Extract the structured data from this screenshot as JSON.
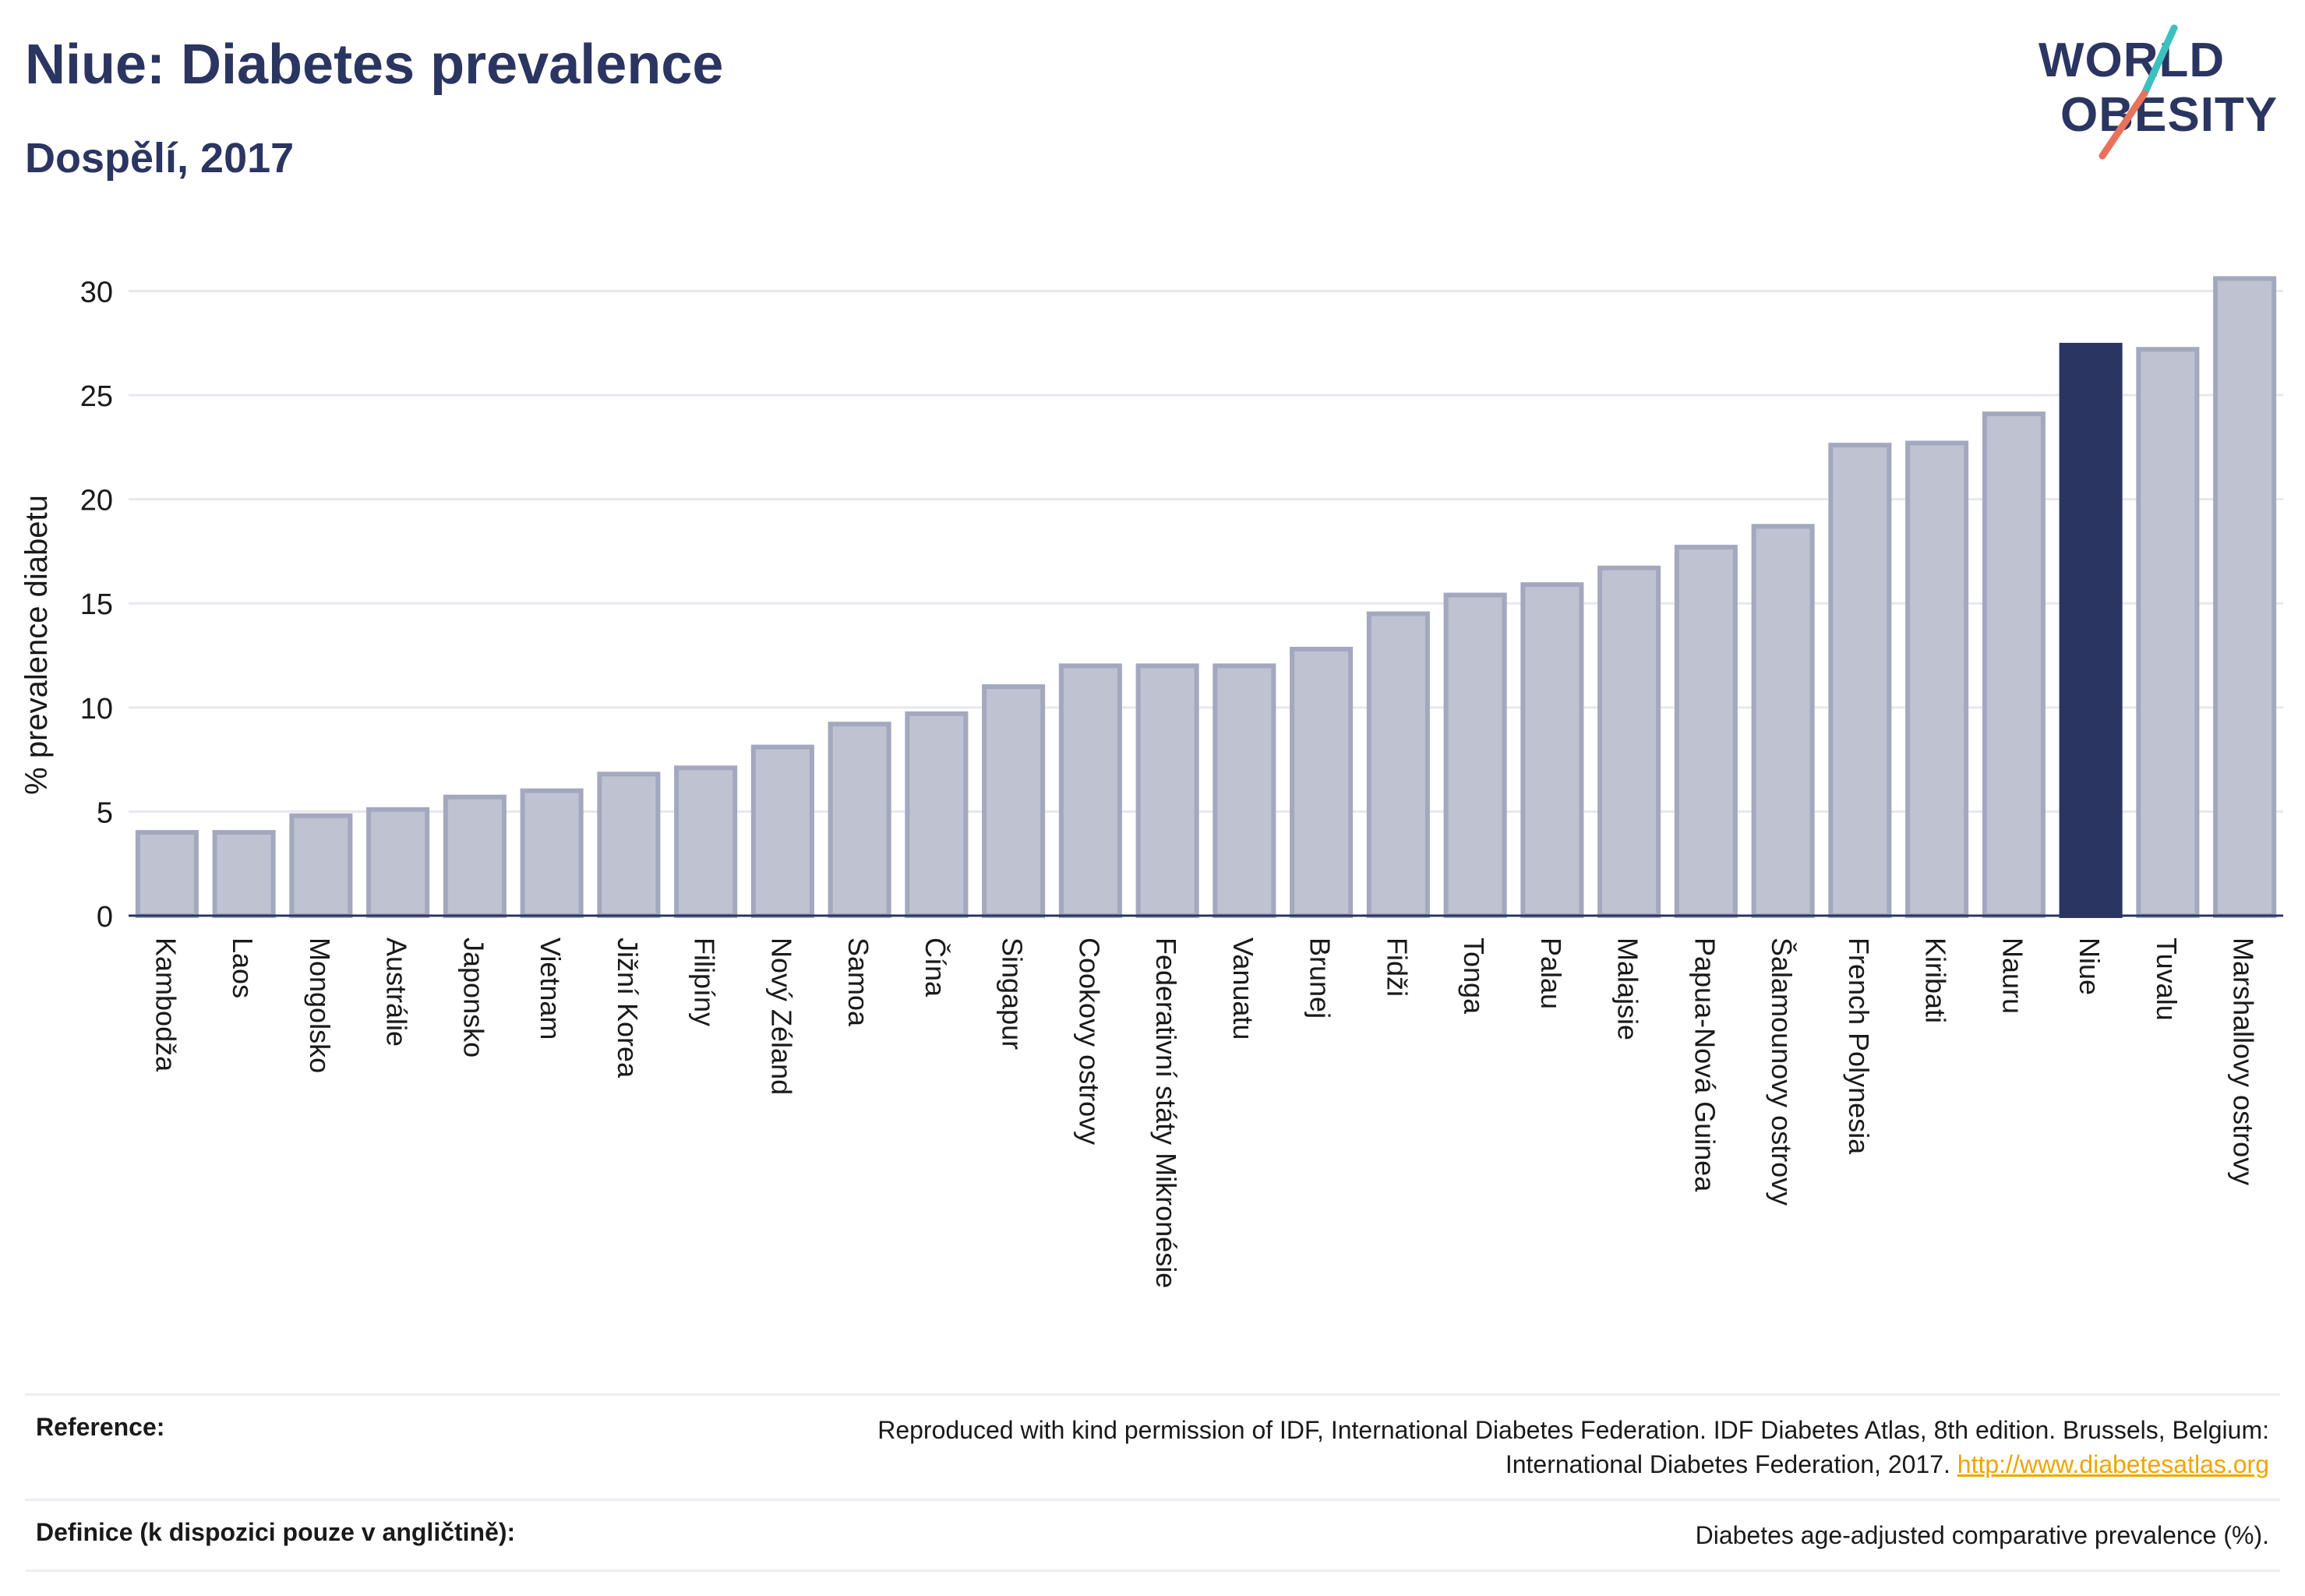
{
  "header": {
    "title": "Niue: Diabetes prevalence",
    "subtitle": "Dospělí, 2017"
  },
  "logo": {
    "line1": "WORLD",
    "line2": "OBESITY",
    "accent_teal": "#3cc1c0",
    "accent_coral": "#e8735d"
  },
  "colors": {
    "bar_default": "#bec2d1",
    "bar_outline": "#a3a8bf",
    "bar_highlight": "#2b3561",
    "text": "#2b3561",
    "link": "#f0a500"
  },
  "chart_data": {
    "type": "bar",
    "ylabel": "% prevalence diabetu",
    "ylim": [
      0,
      32
    ],
    "yticks": [
      0,
      5,
      10,
      15,
      20,
      25,
      30
    ],
    "grid": true,
    "highlight": "Niue",
    "categories": [
      "Kambodža",
      "Laos",
      "Mongolsko",
      "Austrálie",
      "Japonsko",
      "Vietnam",
      "Jižní Korea",
      "Filipíny",
      "Nový Zéland",
      "Samoa",
      "Čína",
      "Singapur",
      "Cookovy ostrovy",
      "Federativní státy Mikronésie",
      "Vanuatu",
      "Brunej",
      "Fidži",
      "Tonga",
      "Palau",
      "Malajsie",
      "Papua-Nová Guinea",
      "Šalamounovy ostrovy",
      "French Polynesia",
      "Kiribati",
      "Nauru",
      "Niue",
      "Tuvalu",
      "Marshallovy ostrovy"
    ],
    "values": [
      4.0,
      4.0,
      4.8,
      5.1,
      5.7,
      6.0,
      6.8,
      7.1,
      8.1,
      9.2,
      9.7,
      11.0,
      12.0,
      12.0,
      12.0,
      12.8,
      14.5,
      15.4,
      15.9,
      16.7,
      17.7,
      18.7,
      22.6,
      22.7,
      24.1,
      27.4,
      27.2,
      30.6
    ]
  },
  "footer": {
    "reference_label": "Reference:",
    "reference_text": "Reproduced with kind permission of IDF, International Diabetes Federation. IDF Diabetes Atlas, 8th edition. Brussels, Belgium:",
    "reference_text2": "International Diabetes Federation, 2017.",
    "reference_link": "http://www.diabetesatlas.org",
    "definition_label": "Definice (k dispozici pouze v angličtině):",
    "definition_text": "Diabetes age-adjusted comparative prevalence (%)."
  }
}
